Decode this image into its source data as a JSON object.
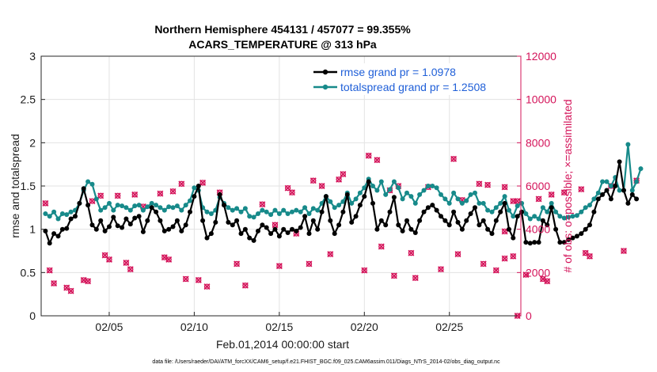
{
  "chart_data": {
    "type": "line",
    "title": [
      "Northern Hemisphere 454131 / 457077 = 99.355%",
      "ACARS_TEMPERATURE @ 313 hPa"
    ],
    "xlabel": "Feb.01,2014 00:00:00 start",
    "ylabel": "rmse and totalspread",
    "ylabel_right": "# of obs: o=possible; ×=assimilated",
    "xlim": [
      1,
      29.2
    ],
    "ylim": [
      0,
      3
    ],
    "ylim_right": [
      0,
      12000
    ],
    "xticks": [
      {
        "x": 5,
        "label": "02/05"
      },
      {
        "x": 10,
        "label": "02/10"
      },
      {
        "x": 15,
        "label": "02/15"
      },
      {
        "x": 20,
        "label": "02/20"
      },
      {
        "x": 25,
        "label": "02/25"
      }
    ],
    "yticks": [
      "0",
      "0.5",
      "1",
      "1.5",
      "2",
      "2.5",
      "3"
    ],
    "yticks_right": [
      "0",
      "2000",
      "4000",
      "6000",
      "8000",
      "10000",
      "12000"
    ],
    "grid": true,
    "legend_position": "top-right",
    "footer": "data file: /Users/raeder/DAI/ATM_forcXX/CAM6_setup/f.e21.FHIST_BGC.f09_025.CAM6assim.011/Diags_NTrS_2014-02/obs_diag_output.nc",
    "series": [
      {
        "name": "rmse grand pr = 1.0978",
        "axis": "left",
        "color": "#000000",
        "x_start": 1.25,
        "x_step": 0.25,
        "values": [
          0.98,
          0.84,
          0.95,
          0.92,
          1.0,
          1.01,
          1.12,
          1.15,
          1.3,
          1.47,
          1.28,
          1.05,
          1.0,
          1.1,
          0.98,
          1.03,
          1.14,
          1.04,
          1.02,
          1.12,
          1.06,
          1.13,
          1.15,
          0.97,
          1.1,
          1.25,
          1.2,
          1.1,
          0.98,
          1.0,
          1.03,
          1.1,
          0.98,
          1.05,
          1.2,
          1.38,
          1.5,
          1.1,
          0.9,
          0.95,
          1.08,
          1.4,
          1.28,
          1.08,
          1.05,
          1.1,
          0.95,
          1.0,
          0.9,
          0.87,
          0.98,
          1.05,
          1.02,
          0.95,
          1.0,
          0.92,
          1.0,
          0.96,
          1.0,
          0.98,
          1.02,
          1.15,
          0.95,
          1.1,
          1.0,
          1.2,
          1.38,
          1.1,
          0.95,
          1.05,
          1.2,
          1.4,
          1.08,
          1.15,
          1.28,
          1.38,
          1.55,
          1.3,
          1.0,
          1.1,
          1.05,
          1.2,
          1.37,
          1.05,
          0.98,
          1.1,
          1.0,
          0.96,
          1.1,
          1.2,
          1.25,
          1.28,
          1.22,
          1.15,
          1.1,
          1.05,
          1.2,
          1.08,
          1.0,
          1.1,
          1.18,
          1.25,
          1.05,
          1.1,
          1.0,
          0.95,
          1.1,
          1.2,
          1.3,
          1.0,
          0.9,
          1.15,
          1.2,
          0.85,
          0.84,
          0.85,
          0.85,
          1.1,
          1.05,
          1.25,
          1.0,
          0.85,
          0.85,
          0.88,
          0.9,
          0.92,
          0.95,
          1.0,
          1.05,
          1.2,
          1.35,
          1.4,
          1.45,
          1.35,
          1.5,
          1.78,
          1.45,
          1.3,
          1.4,
          1.35
        ]
      },
      {
        "name": "totalspread grand pr = 1.2508",
        "axis": "left",
        "color": "#178a8a",
        "x_start": 1.25,
        "x_step": 0.25,
        "values": [
          1.18,
          1.15,
          1.2,
          1.12,
          1.18,
          1.17,
          1.2,
          1.22,
          1.3,
          1.45,
          1.55,
          1.52,
          1.35,
          1.22,
          1.25,
          1.3,
          1.22,
          1.28,
          1.27,
          1.25,
          1.22,
          1.27,
          1.28,
          1.22,
          1.26,
          1.3,
          1.28,
          1.25,
          1.22,
          1.26,
          1.25,
          1.27,
          1.22,
          1.28,
          1.33,
          1.48,
          1.45,
          1.25,
          1.2,
          1.18,
          1.22,
          1.37,
          1.3,
          1.25,
          1.22,
          1.24,
          1.2,
          1.24,
          1.15,
          1.14,
          1.18,
          1.22,
          1.2,
          1.17,
          1.22,
          1.18,
          1.22,
          1.18,
          1.2,
          1.22,
          1.2,
          1.25,
          1.18,
          1.24,
          1.22,
          1.3,
          1.38,
          1.32,
          1.25,
          1.28,
          1.32,
          1.42,
          1.3,
          1.35,
          1.42,
          1.48,
          1.58,
          1.5,
          1.45,
          1.55,
          1.4,
          1.46,
          1.55,
          1.48,
          1.35,
          1.42,
          1.38,
          1.3,
          1.4,
          1.45,
          1.5,
          1.5,
          1.48,
          1.4,
          1.35,
          1.3,
          1.42,
          1.35,
          1.3,
          1.33,
          1.4,
          1.42,
          1.3,
          1.3,
          1.22,
          1.2,
          1.25,
          1.3,
          1.38,
          1.22,
          1.15,
          1.27,
          1.3,
          1.18,
          1.12,
          1.15,
          1.12,
          1.25,
          1.2,
          1.3,
          1.2,
          1.15,
          1.13,
          1.14,
          1.15,
          1.16,
          1.2,
          1.25,
          1.28,
          1.35,
          1.42,
          1.55,
          1.55,
          1.5,
          1.6,
          1.45,
          1.45,
          1.98,
          1.45,
          1.55,
          1.7
        ]
      },
      {
        "name": "possible",
        "axis": "right",
        "color": "#d4145a",
        "x_start": 1.25,
        "x_step": 0.25,
        "values": [
          5200,
          2100,
          1500,
          null,
          null,
          1300,
          1150,
          null,
          null,
          1650,
          1600,
          5300,
          null,
          5550,
          2800,
          2600,
          null,
          5550,
          null,
          2450,
          2150,
          5600,
          null,
          5050,
          null,
          null,
          null,
          5650,
          2700,
          2600,
          5750,
          null,
          6100,
          1700,
          null,
          null,
          1650,
          6150,
          1350,
          null,
          null,
          5700,
          null,
          null,
          null,
          2400,
          null,
          1400,
          null,
          null,
          null,
          5150,
          null,
          null,
          4200,
          2300,
          null,
          5900,
          5700,
          3800,
          null,
          null,
          2400,
          6250,
          null,
          6000,
          null,
          2850,
          null,
          6300,
          6550,
          null,
          null,
          null,
          null,
          2100,
          7400,
          null,
          7200,
          3200,
          null,
          5800,
          1850,
          6000,
          null,
          null,
          2900,
          1750,
          null,
          null,
          5950,
          null,
          null,
          2150,
          null,
          null,
          7250,
          2850,
          5350,
          null,
          null,
          null,
          6100,
          2400,
          6050,
          null,
          2100,
          null,
          5950,
          null,
          5300,
          null,
          null,
          1900,
          null,
          null,
          5400,
          1700,
          1600,
          5600,
          null,
          null,
          5700,
          null,
          null,
          null,
          5850,
          2900,
          2750,
          null,
          null,
          null,
          null,
          6000,
          null,
          null,
          3000,
          null,
          null,
          6250,
          null,
          null,
          null,
          null,
          null
        ],
        "extra_points": [
          [
            28.25,
            3900
          ],
          [
            28.25,
            2650
          ],
          [
            28.75,
            2750
          ],
          [
            29.0,
            5300
          ],
          [
            29.0,
            0
          ]
        ]
      }
    ]
  }
}
